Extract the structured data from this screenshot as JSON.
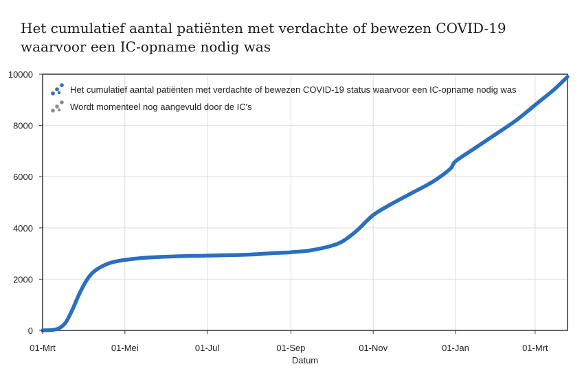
{
  "chart_data": {
    "type": "line",
    "title": "Het cumulatief aantal patiënten met verdachte of bewezen COVID-19 waarvoor een IC-opname nodig was",
    "title_lines": [
      "Het cumulatief aantal patiënten met verdachte of bewezen COVID-19",
      "waarvoor een IC-opname nodig was"
    ],
    "xlabel": "Datum",
    "ylabel": "",
    "x_tick_labels": [
      "01-Mrt",
      "01-Mei",
      "01-Jul",
      "01-Sep",
      "01-Nov",
      "01-Jan",
      "01-Mrt"
    ],
    "x_ticks": [
      "2020-03-01",
      "2020-05-01",
      "2020-07-01",
      "2020-09-01",
      "2020-11-01",
      "2021-01-01",
      "2021-03-01"
    ],
    "xlim": [
      "2020-03-01",
      "2021-03-25"
    ],
    "y_ticks": [
      0,
      2000,
      4000,
      6000,
      8000,
      10000
    ],
    "y_tick_labels": [
      "0",
      "2000",
      "4000",
      "6000",
      "8000",
      "10000"
    ],
    "ylim": [
      0,
      10000
    ],
    "grid": true,
    "legend_position": "top-left",
    "legend": [
      {
        "label": "Het cumulatief aantal patiënten met verdachte of bewezen COVID-19 status waarvoor een IC-opname nodig was",
        "color": "#2a6fc0"
      },
      {
        "label": "Wordt momenteel nog aangevuld door de IC's",
        "color": "#8a8a8a"
      }
    ],
    "series": [
      {
        "name": "Het cumulatief aantal patiënten met verdachte of bewezen COVID-19 status waarvoor een IC-opname nodig was",
        "color": "#2a6fc0",
        "points": [
          [
            "2020-03-01",
            0
          ],
          [
            "2020-03-08",
            20
          ],
          [
            "2020-03-13",
            80
          ],
          [
            "2020-03-18",
            300
          ],
          [
            "2020-03-23",
            800
          ],
          [
            "2020-03-28",
            1400
          ],
          [
            "2020-04-02",
            1900
          ],
          [
            "2020-04-07",
            2250
          ],
          [
            "2020-04-14",
            2500
          ],
          [
            "2020-04-21",
            2650
          ],
          [
            "2020-05-01",
            2750
          ],
          [
            "2020-05-15",
            2830
          ],
          [
            "2020-06-01",
            2880
          ],
          [
            "2020-07-01",
            2920
          ],
          [
            "2020-08-01",
            2960
          ],
          [
            "2020-08-20",
            3020
          ],
          [
            "2020-09-01",
            3050
          ],
          [
            "2020-09-15",
            3120
          ],
          [
            "2020-10-01",
            3300
          ],
          [
            "2020-10-10",
            3500
          ],
          [
            "2020-10-20",
            3900
          ],
          [
            "2020-11-01",
            4500
          ],
          [
            "2020-11-15",
            4950
          ],
          [
            "2020-12-01",
            5400
          ],
          [
            "2020-12-15",
            5800
          ],
          [
            "2020-12-28",
            6300
          ],
          [
            "2021-01-01",
            6600
          ],
          [
            "2021-01-15",
            7100
          ],
          [
            "2021-02-01",
            7700
          ],
          [
            "2021-02-15",
            8200
          ],
          [
            "2021-03-01",
            8800
          ],
          [
            "2021-03-15",
            9400
          ],
          [
            "2021-03-25",
            9900
          ]
        ]
      }
    ]
  }
}
